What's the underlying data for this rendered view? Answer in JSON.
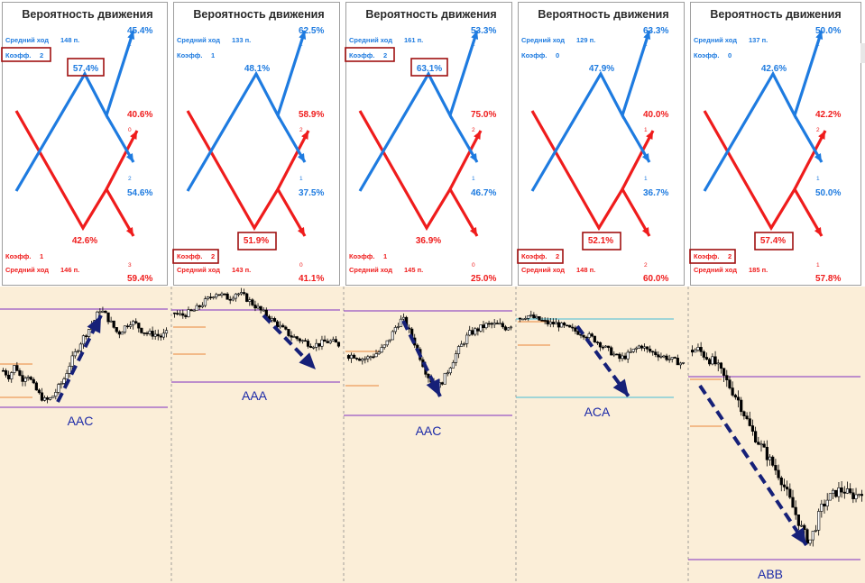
{
  "colors": {
    "blue": "#1e7be0",
    "red": "#ef1c1c",
    "highlight_box": "#a01010",
    "chart_bg": "#fbeed8",
    "purple_line": "#7f2fc0",
    "cyan_line": "#46bcd6",
    "orange_line": "#e8863a",
    "arrow": "#162078",
    "label": "#1c2aa8"
  },
  "panels": [
    {
      "title": "Вероятность движения",
      "blue_avg_label": "Средний ход",
      "blue_avg_value": "148 п.",
      "blue_coef_label": "Коэфф.",
      "blue_coef_value": "2",
      "blue_coef_boxed": true,
      "blue_top": "45.4%",
      "blue_top_count": "1",
      "blue_mid": "57.4%",
      "blue_mid_boxed": true,
      "blue_bottom": "54.6%",
      "blue_bottom_count": "2",
      "red_mid_right": "40.6%",
      "red_mid_right_count": "0",
      "red_low": "42.6%",
      "red_low_boxed": false,
      "red_bottom": "59.4%",
      "red_bottom_count": "3",
      "red_coef_label": "Коэфф.",
      "red_coef_value": "1",
      "red_coef_boxed": false,
      "red_avg_label": "Средний ход",
      "red_avg_value": "146 п."
    },
    {
      "title": "Вероятность движения",
      "blue_avg_label": "Средний ход",
      "blue_avg_value": "133 п.",
      "blue_coef_label": "Коэфф.",
      "blue_coef_value": "1",
      "blue_coef_boxed": false,
      "blue_top": "62.5%",
      "blue_top_count": "1",
      "blue_mid": "48.1%",
      "blue_mid_boxed": false,
      "blue_bottom": "37.5%",
      "blue_bottom_count": "1",
      "red_mid_right": "58.9%",
      "red_mid_right_count": "2",
      "red_low": "51.9%",
      "red_low_boxed": true,
      "red_bottom": "41.1%",
      "red_bottom_count": "0",
      "red_coef_label": "Коэфф.",
      "red_coef_value": "2",
      "red_coef_boxed": true,
      "red_avg_label": "Средний ход",
      "red_avg_value": "143 п."
    },
    {
      "title": "Вероятность движения",
      "blue_avg_label": "Средний ход",
      "blue_avg_value": "161 п.",
      "blue_coef_label": "Коэфф.",
      "blue_coef_value": "2",
      "blue_coef_boxed": true,
      "blue_top": "53.3%",
      "blue_top_count": "1",
      "blue_mid": "63.1%",
      "blue_mid_boxed": true,
      "blue_bottom": "46.7%",
      "blue_bottom_count": "1",
      "red_mid_right": "75.0%",
      "red_mid_right_count": "2",
      "red_low": "36.9%",
      "red_low_boxed": false,
      "red_bottom": "25.0%",
      "red_bottom_count": "0",
      "red_coef_label": "Коэфф.",
      "red_coef_value": "1",
      "red_coef_boxed": false,
      "red_avg_label": "Средний ход",
      "red_avg_value": "145 п."
    },
    {
      "title": "Вероятность движения",
      "blue_avg_label": "Средний ход",
      "blue_avg_value": "129 п.",
      "blue_coef_label": "Коэфф.",
      "blue_coef_value": "0",
      "blue_coef_boxed": false,
      "blue_top": "63.3%",
      "blue_top_count": "1",
      "blue_mid": "47.9%",
      "blue_mid_boxed": false,
      "blue_bottom": "36.7%",
      "blue_bottom_count": "1",
      "red_mid_right": "40.0%",
      "red_mid_right_count": "1",
      "red_low": "52.1%",
      "red_low_boxed": true,
      "red_bottom": "60.0%",
      "red_bottom_count": "2",
      "red_coef_label": "Коэфф.",
      "red_coef_value": "2",
      "red_coef_boxed": true,
      "red_avg_label": "Средний ход",
      "red_avg_value": "148 п."
    },
    {
      "title": "Вероятность движения",
      "blue_avg_label": "Средний ход",
      "blue_avg_value": "137 п.",
      "blue_coef_label": "Коэфф.",
      "blue_coef_value": "0",
      "blue_coef_boxed": false,
      "blue_top": "50.0%",
      "blue_top_count": "1",
      "blue_mid": "42.6%",
      "blue_mid_boxed": false,
      "blue_bottom": "50.0%",
      "blue_bottom_count": "1",
      "red_mid_right": "42.2%",
      "red_mid_right_count": "2",
      "red_low": "57.4%",
      "red_low_boxed": true,
      "red_bottom": "57.8%",
      "red_bottom_count": "1",
      "red_coef_label": "Коэфф.",
      "red_coef_value": "2",
      "red_coef_boxed": true,
      "red_avg_label": "Средний ход",
      "red_avg_value": "185 п."
    }
  ],
  "chart_data": {
    "type": "candlestick",
    "segments": [
      {
        "pattern_label": "AAC",
        "direction": "up",
        "path": [
          12,
          10,
          14,
          9,
          11,
          7,
          4,
          2,
          3,
          6,
          9,
          14,
          18,
          22,
          25,
          28,
          32,
          30,
          27,
          24,
          26,
          28,
          27,
          25,
          24,
          24,
          23,
          24
        ]
      },
      {
        "pattern_label": "AAA",
        "direction": "down",
        "path": [
          24,
          23,
          24,
          25,
          27,
          29,
          31,
          30,
          29,
          31,
          30,
          28,
          26,
          24,
          22,
          20,
          18,
          16,
          15,
          14,
          13,
          13,
          14,
          14,
          13
        ]
      },
      {
        "pattern_label": "AAC",
        "direction": "down",
        "path": [
          14,
          14,
          13,
          13,
          14,
          15,
          17,
          20,
          24,
          26,
          22,
          18,
          13,
          8,
          5,
          4,
          7,
          11,
          15,
          18,
          21,
          22,
          23,
          24,
          24,
          24,
          23,
          24
        ]
      },
      {
        "pattern_label": "ACA",
        "direction": "down",
        "path": [
          24,
          25,
          24,
          23,
          22,
          22,
          21,
          20,
          19,
          18,
          17,
          15,
          13,
          11,
          9,
          10,
          12,
          14,
          12,
          11,
          10,
          9,
          8,
          7
        ]
      },
      {
        "pattern_label": "ABB",
        "direction": "down",
        "path": [
          8,
          8,
          7,
          6,
          5,
          3,
          1,
          -1,
          -3,
          -6,
          -9,
          -11,
          -13,
          -15,
          -17,
          -19,
          -22,
          -25,
          -28,
          -31,
          -33,
          -30,
          -26,
          -24,
          -23,
          -22,
          -22,
          -23,
          -23,
          -22
        ]
      }
    ]
  }
}
